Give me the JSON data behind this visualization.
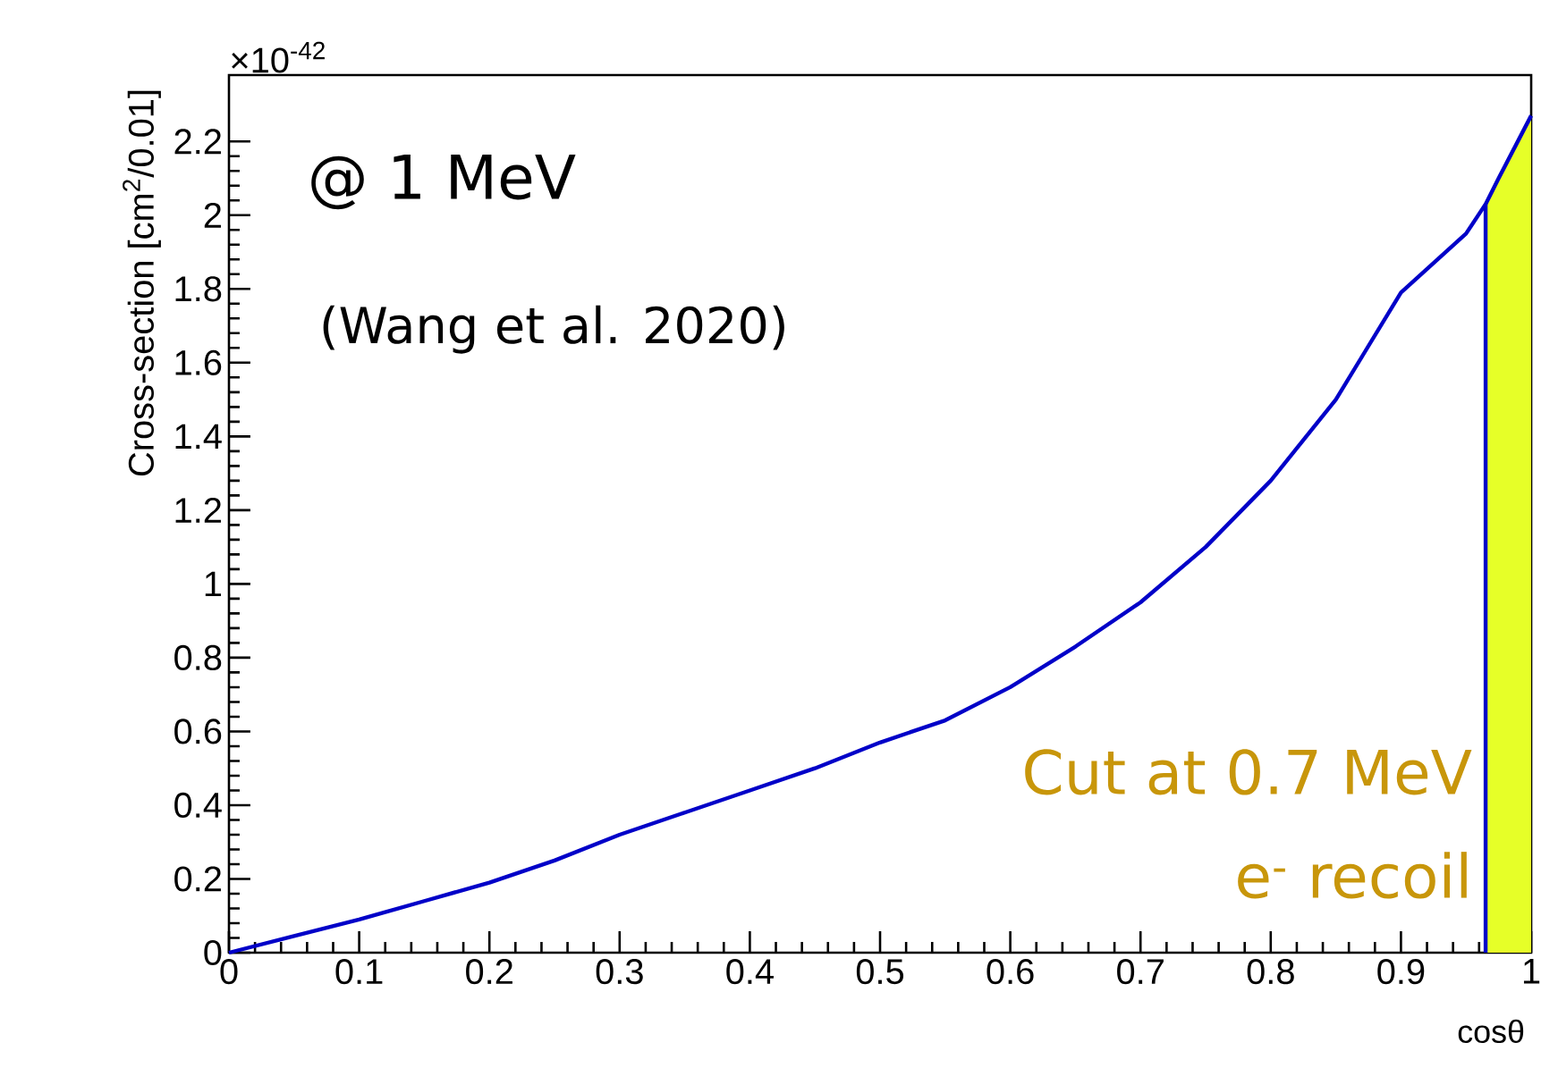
{
  "chart_data": {
    "type": "line",
    "xlabel": "cosθ",
    "ylabel": "Cross-section [cm$^{2}$/0.01]",
    "x": [
      0,
      0.05,
      0.1,
      0.15,
      0.2,
      0.25,
      0.3,
      0.35,
      0.4,
      0.45,
      0.5,
      0.55,
      0.6,
      0.65,
      0.7,
      0.75,
      0.8,
      0.85,
      0.9,
      0.95,
      0.965,
      0.975,
      1.0
    ],
    "series": [
      {
        "color": "#0000c8",
        "values": [
          0,
          0.045,
          0.09,
          0.14,
          0.19,
          0.25,
          0.32,
          0.38,
          0.44,
          0.5,
          0.57,
          0.63,
          0.72,
          0.83,
          0.95,
          1.1,
          1.28,
          1.5,
          1.79,
          1.95,
          2.03,
          2.1,
          2.27
        ]
      }
    ],
    "xlim": [
      0,
      1
    ],
    "ylim": [
      0,
      2.38
    ],
    "xticks": [
      0,
      0.1,
      0.2,
      0.3,
      0.4,
      0.5,
      0.6,
      0.7,
      0.8,
      0.9,
      1
    ],
    "yticks": [
      0,
      0.2,
      0.4,
      0.6,
      0.8,
      1,
      1.2,
      1.4,
      1.6,
      1.8,
      2,
      2.2
    ],
    "ref_lines": [
      {
        "axis": "x",
        "value": 0.965,
        "color": "#0000c8"
      }
    ],
    "bands": [
      {
        "axis": "x",
        "from": 0.965,
        "to": 1,
        "color": "#e6ff28"
      }
    ],
    "annotations": [
      "×10$^{-42}$",
      "@ 1 MeV",
      "(Wang et al. 2020)",
      "Cut at 0.7 MeV",
      "e$^{-}$ recoil"
    ]
  }
}
